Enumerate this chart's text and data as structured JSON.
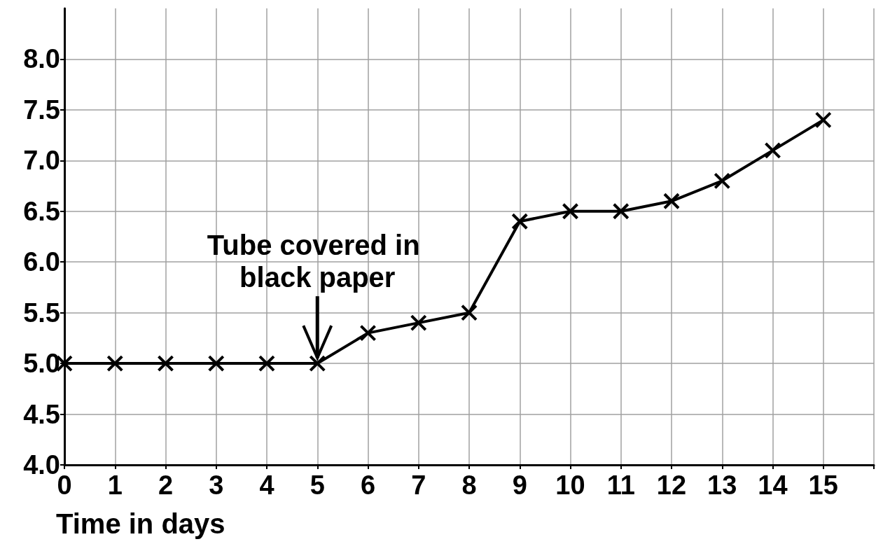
{
  "chart_data": {
    "type": "line",
    "xlabel": "Time in days",
    "x": [
      0,
      1,
      2,
      3,
      4,
      5,
      6,
      7,
      8,
      9,
      10,
      11,
      12,
      13,
      14,
      15
    ],
    "series": [
      {
        "color": "#000000",
        "values": [
          5,
          5,
          5,
          5,
          5,
          5,
          5.3,
          5.4,
          5.5,
          6.4,
          6.5,
          6.5,
          6.6,
          6.8,
          7.1,
          7.4
        ]
      }
    ],
    "xlim": [
      0,
      16
    ],
    "xticks": [
      0,
      1,
      2,
      3,
      4,
      5,
      6,
      7,
      8,
      9,
      10,
      11,
      12,
      13,
      14,
      15,
      {
        "value": 16,
        "label": null
      }
    ],
    "ylim": [
      4,
      8.5
    ],
    "yticks": [
      {
        "value": 4,
        "label": "4.0"
      },
      {
        "value": 4.5,
        "label": "4.5"
      },
      {
        "value": 5,
        "label": "5.0"
      },
      {
        "value": 5.5,
        "label": "5.5"
      },
      {
        "value": 6,
        "label": "6.0"
      },
      {
        "value": 6.5,
        "label": "6.5"
      },
      {
        "value": 7,
        "label": "7.0"
      },
      {
        "value": 7.5,
        "label": "7.5"
      },
      {
        "value": 8,
        "label": "8.0"
      }
    ],
    "grid": true,
    "marker": "cross",
    "line_style": "solid",
    "annotations": [
      {
        "text": "Tube covered in black paper",
        "x": 5,
        "y": 5
      }
    ]
  }
}
